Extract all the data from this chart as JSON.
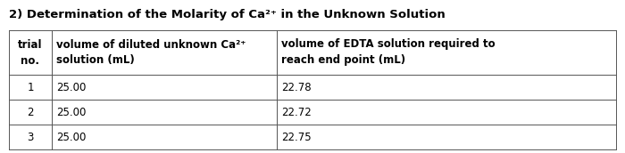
{
  "title": "2) Determination of the Molarity of Ca²⁺ in the Unknown Solution",
  "col1_header": [
    "trial",
    "no."
  ],
  "col2_header": [
    "volume of diluted unknown Ca²⁺",
    "solution (mL)"
  ],
  "col3_header": [
    "volume of EDTA solution required to",
    "reach end point (mL)"
  ],
  "rows": [
    [
      "1",
      "25.00",
      "22.78"
    ],
    [
      "2",
      "25.00",
      "22.72"
    ],
    [
      "3",
      "25.00",
      "22.75"
    ]
  ],
  "bg_color": "#ffffff",
  "text_color": "#000000",
  "title_fontsize": 9.5,
  "table_fontsize": 8.5,
  "line_color": "#555555",
  "line_width": 0.7
}
